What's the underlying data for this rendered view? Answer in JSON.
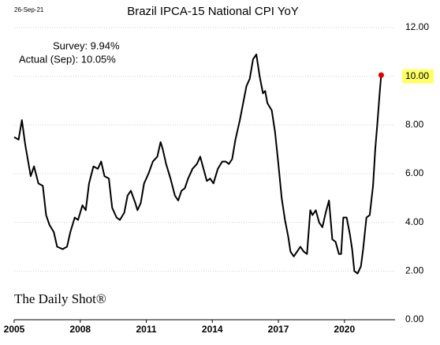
{
  "chart_data": {
    "type": "line",
    "title": "Brazil IPCA-15 National CPI YoY",
    "date": "26-Sep-21",
    "annotations": [
      "Survey:  9.94%",
      "Actual (Sep):  10.05%"
    ],
    "source": "The Daily Shot®",
    "x": [
      2005.0,
      2005.2,
      2005.35,
      2005.5,
      2005.75,
      2005.9,
      2006.1,
      2006.3,
      2006.45,
      2006.6,
      2006.8,
      2006.95,
      2007.2,
      2007.4,
      2007.55,
      2007.75,
      2007.9,
      2008.1,
      2008.25,
      2008.4,
      2008.6,
      2008.8,
      2008.95,
      2009.1,
      2009.3,
      2009.45,
      2009.65,
      2009.8,
      2010.0,
      2010.15,
      2010.3,
      2010.5,
      2010.6,
      2010.75,
      2010.9,
      2011.1,
      2011.3,
      2011.5,
      2011.65,
      2011.75,
      2011.9,
      2012.1,
      2012.3,
      2012.45,
      2012.6,
      2012.75,
      2012.9,
      2013.1,
      2013.3,
      2013.45,
      2013.6,
      2013.75,
      2013.9,
      2014.05,
      2014.25,
      2014.45,
      2014.6,
      2014.75,
      2014.9,
      2015.05,
      2015.25,
      2015.4,
      2015.55,
      2015.7,
      2015.85,
      2016.0,
      2016.15,
      2016.3,
      2016.4,
      2016.5,
      2016.7,
      2016.85,
      2017.0,
      2017.15,
      2017.3,
      2017.45,
      2017.55,
      2017.7,
      2017.85,
      2018.0,
      2018.15,
      2018.3,
      2018.45,
      2018.55,
      2018.7,
      2018.85,
      2019.0,
      2019.15,
      2019.3,
      2019.45,
      2019.6,
      2019.75,
      2019.85,
      2019.95,
      2020.1,
      2020.25,
      2020.35,
      2020.45,
      2020.6,
      2020.75,
      2020.85,
      2021.0,
      2021.15,
      2021.3,
      2021.4,
      2021.5,
      2021.6,
      2021.67
    ],
    "series": [
      {
        "name": "IPCA-15 YoY",
        "color": "#000000",
        "values": [
          7.5,
          7.4,
          8.2,
          7.2,
          5.9,
          6.3,
          5.6,
          5.5,
          4.3,
          3.9,
          3.6,
          3.0,
          2.9,
          3.0,
          3.6,
          4.2,
          4.1,
          4.7,
          4.5,
          5.6,
          6.3,
          6.2,
          6.5,
          5.9,
          5.8,
          4.6,
          4.2,
          4.1,
          4.4,
          5.1,
          5.3,
          4.8,
          4.5,
          4.8,
          5.6,
          6.0,
          6.5,
          6.7,
          7.3,
          7.0,
          6.4,
          5.8,
          5.1,
          4.9,
          5.3,
          5.4,
          5.8,
          6.2,
          6.4,
          6.7,
          6.2,
          5.7,
          5.8,
          5.6,
          6.2,
          6.5,
          6.5,
          6.4,
          6.6,
          7.4,
          8.2,
          8.9,
          9.6,
          9.9,
          10.7,
          10.9,
          10.0,
          9.3,
          9.4,
          8.9,
          8.6,
          7.7,
          6.4,
          5.0,
          4.1,
          3.4,
          2.8,
          2.6,
          2.8,
          3.0,
          2.8,
          2.7,
          4.5,
          4.3,
          4.5,
          4.0,
          3.8,
          4.4,
          4.9,
          3.3,
          3.2,
          2.7,
          2.7,
          4.2,
          4.2,
          3.5,
          2.9,
          2.0,
          1.9,
          2.2,
          2.9,
          4.2,
          4.3,
          5.5,
          7.0,
          8.1,
          9.3,
          10.05
        ]
      }
    ],
    "end_marker_color": "#e00000",
    "highlight_color": "#ffff66",
    "xlim": [
      2005,
      2022.3
    ],
    "xticks": [
      2005,
      2008,
      2011,
      2014,
      2017,
      2020
    ],
    "ylim": [
      0,
      12
    ],
    "yticks": [
      {
        "value": 0,
        "label": "0.00"
      },
      {
        "value": 2,
        "label": "2.00"
      },
      {
        "value": 4,
        "label": "4.00"
      },
      {
        "value": 6,
        "label": "6.00"
      },
      {
        "value": 8,
        "label": "8.00"
      },
      {
        "value": 10,
        "label": "10.00"
      },
      {
        "value": 12,
        "label": "12.00"
      }
    ],
    "grid": true
  }
}
